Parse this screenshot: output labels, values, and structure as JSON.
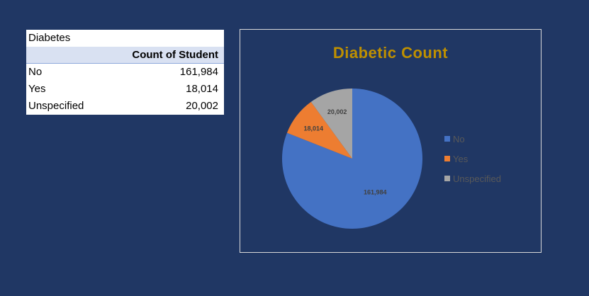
{
  "pivot": {
    "title": "Diabetes",
    "header": "Count of Student",
    "rows": [
      {
        "label": "No",
        "value": "161,984"
      },
      {
        "label": "Yes",
        "value": "18,014"
      },
      {
        "label": "Unspecified",
        "value": "20,002"
      }
    ]
  },
  "colors": {
    "background": "#203764",
    "title": "#bf9000",
    "no": "#4472c4",
    "yes": "#ed7d31",
    "unspecified": "#a5a5a5"
  },
  "chart_data": {
    "type": "pie",
    "title": "Diabetic Count",
    "categories": [
      "No",
      "Yes",
      "Unspecified"
    ],
    "values": [
      161984,
      18014,
      20002
    ],
    "data_labels": [
      "161,984",
      "18,014",
      "20,002"
    ],
    "colors": [
      "#4472c4",
      "#ed7d31",
      "#a5a5a5"
    ],
    "legend_position": "right"
  }
}
